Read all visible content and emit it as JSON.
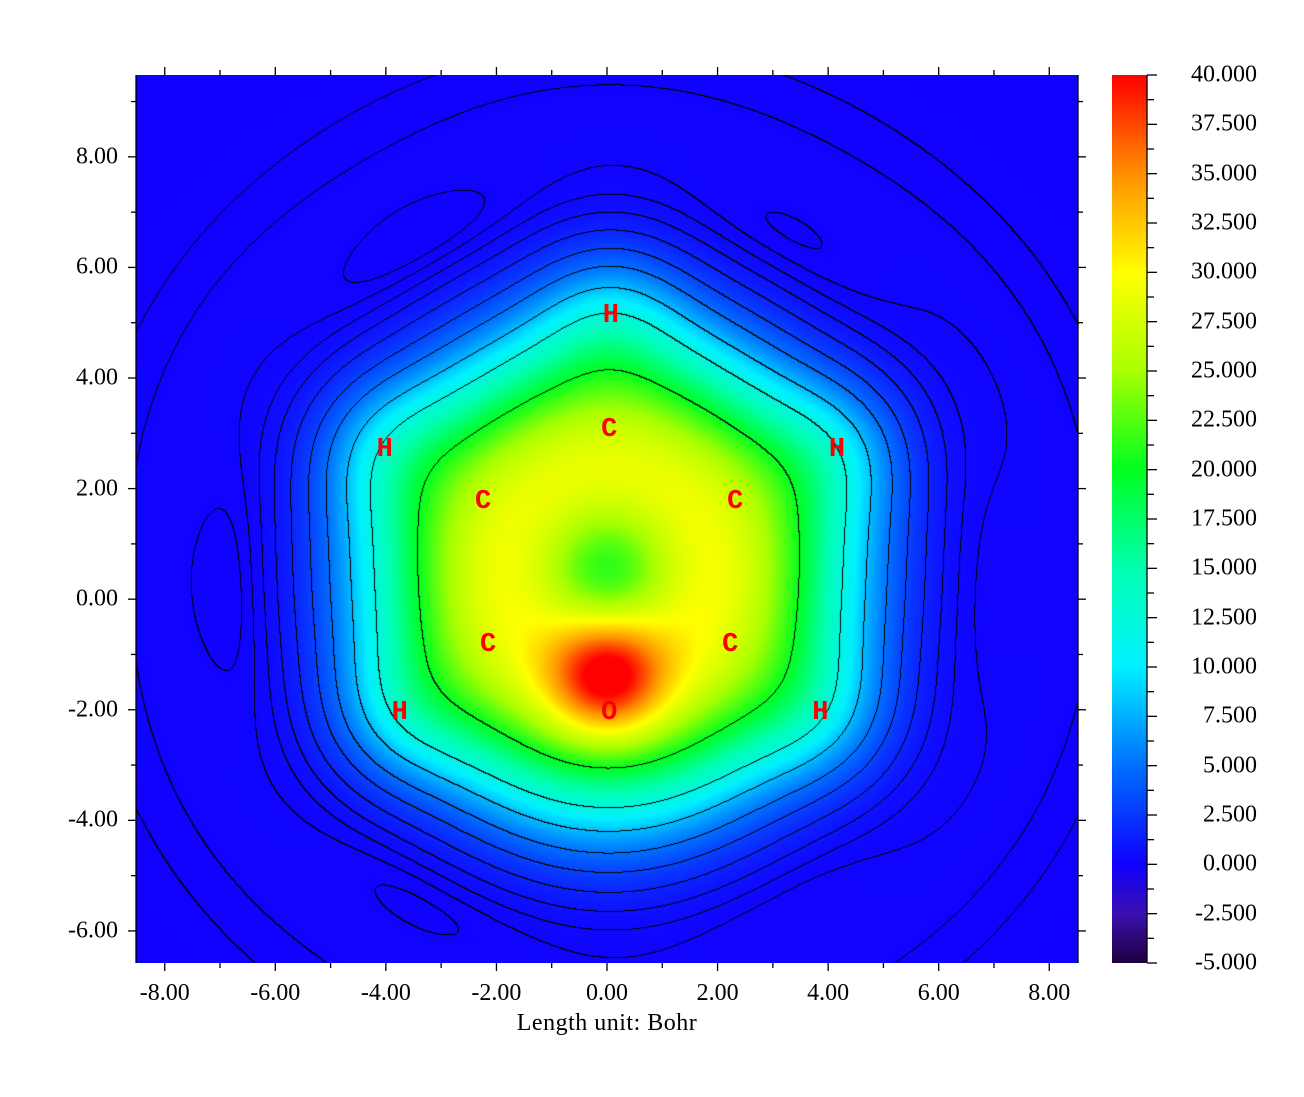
{
  "chart_data": {
    "type": "heatmap",
    "title": "",
    "xlabel": "Length unit: Bohr",
    "ylabel": "",
    "xlim": [
      -8.52,
      8.52
    ],
    "ylim": [
      -6.58,
      9.48
    ],
    "x_ticks": [
      "-8.00",
      "-6.00",
      "-4.00",
      "-2.00",
      "0.00",
      "2.00",
      "4.00",
      "6.00",
      "8.00"
    ],
    "y_ticks": [
      "-6.00",
      "-4.00",
      "-2.00",
      "0.00",
      "2.00",
      "4.00",
      "6.00",
      "8.00"
    ],
    "grid": false,
    "contours": {
      "positive_style": "solid",
      "negative_style": "dashed",
      "color": "#000000"
    },
    "colorbar": {
      "range": [
        -5,
        40
      ],
      "position": "right",
      "ticks": [
        "-5.000",
        "-2.500",
        "0.000",
        "2.500",
        "5.000",
        "7.500",
        "10.000",
        "12.500",
        "15.000",
        "17.500",
        "20.000",
        "22.500",
        "25.000",
        "27.500",
        "30.000",
        "32.500",
        "35.000",
        "37.500",
        "40.000"
      ],
      "colormap": [
        [
          -5,
          "#1e0040"
        ],
        [
          -2.5,
          "#3a10b0"
        ],
        [
          0,
          "#1000ff"
        ],
        [
          5,
          "#0070ff"
        ],
        [
          10,
          "#00f0ff"
        ],
        [
          15,
          "#00ffb0"
        ],
        [
          20,
          "#00ff20"
        ],
        [
          25,
          "#a8ff00"
        ],
        [
          30,
          "#ffff00"
        ],
        [
          35,
          "#ff9000"
        ],
        [
          40,
          "#ff0000"
        ]
      ]
    },
    "atoms": [
      {
        "label": "H",
        "x": 0.07,
        "y": 5.12
      },
      {
        "label": "C",
        "x": 0.04,
        "y": 3.06
      },
      {
        "label": "H",
        "x": -4.02,
        "y": 2.69
      },
      {
        "label": "H",
        "x": 4.16,
        "y": 2.69
      },
      {
        "label": "C",
        "x": -2.24,
        "y": 1.75
      },
      {
        "label": "C",
        "x": 2.32,
        "y": 1.75
      },
      {
        "label": "C",
        "x": -2.15,
        "y": -0.83
      },
      {
        "label": "C",
        "x": 2.23,
        "y": -0.83
      },
      {
        "label": "O",
        "x": 0.04,
        "y": -2.06
      },
      {
        "label": "H",
        "x": -3.75,
        "y": -2.06
      },
      {
        "label": "H",
        "x": 3.86,
        "y": -2.06
      }
    ],
    "atom_label_color": "#ff0000"
  }
}
